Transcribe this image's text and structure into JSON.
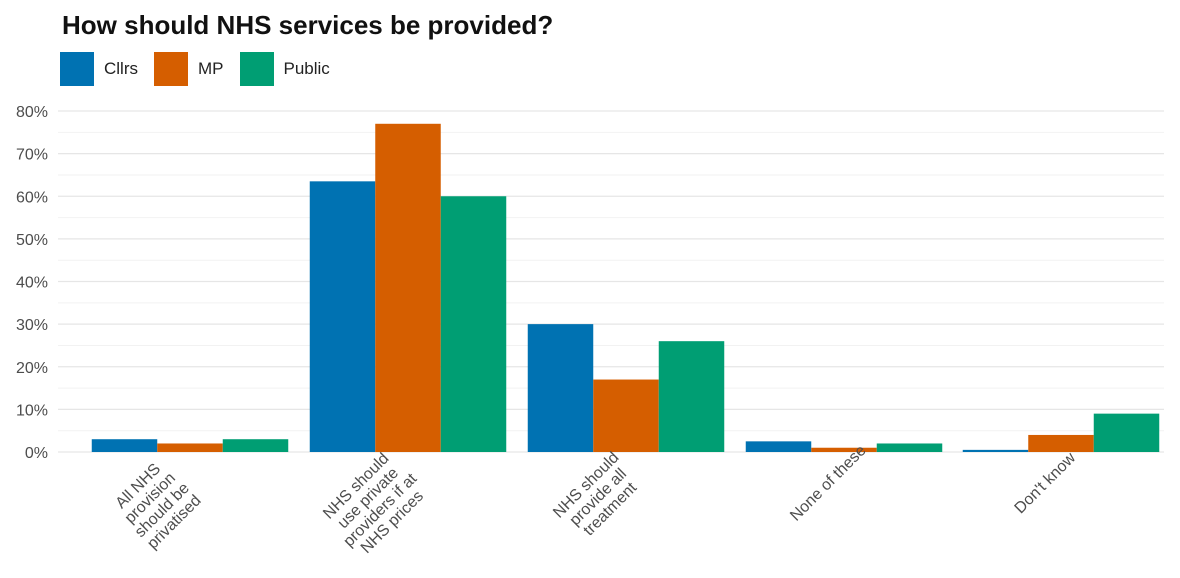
{
  "chart_data": {
    "type": "bar",
    "title": "How should NHS services be provided?",
    "xlabel": "",
    "ylabel": "",
    "ylim": [
      0,
      80
    ],
    "y_ticks": [
      "0%",
      "10%",
      "20%",
      "30%",
      "40%",
      "50%",
      "60%",
      "70%",
      "80%"
    ],
    "y_tick_values": [
      0,
      10,
      20,
      30,
      40,
      50,
      60,
      70,
      80
    ],
    "categories": [
      [
        "All NHS",
        "provision",
        "should be",
        "privatised"
      ],
      [
        "NHS should",
        "use private",
        "providers if at",
        "NHS prices"
      ],
      [
        "NHS should",
        "provide all",
        "treatment"
      ],
      [
        "None of these"
      ],
      [
        "Don't know"
      ]
    ],
    "series": [
      {
        "name": "Cllrs",
        "color": "#0072B2",
        "values": [
          3,
          63.5,
          30,
          2.5,
          0.5
        ]
      },
      {
        "name": "MP",
        "color": "#D55E00",
        "values": [
          2,
          77,
          17,
          1,
          4
        ]
      },
      {
        "name": "Public",
        "color": "#009E73",
        "values": [
          3,
          60,
          26,
          2,
          9
        ]
      }
    ],
    "grid": true,
    "legend_position": "top-left"
  }
}
